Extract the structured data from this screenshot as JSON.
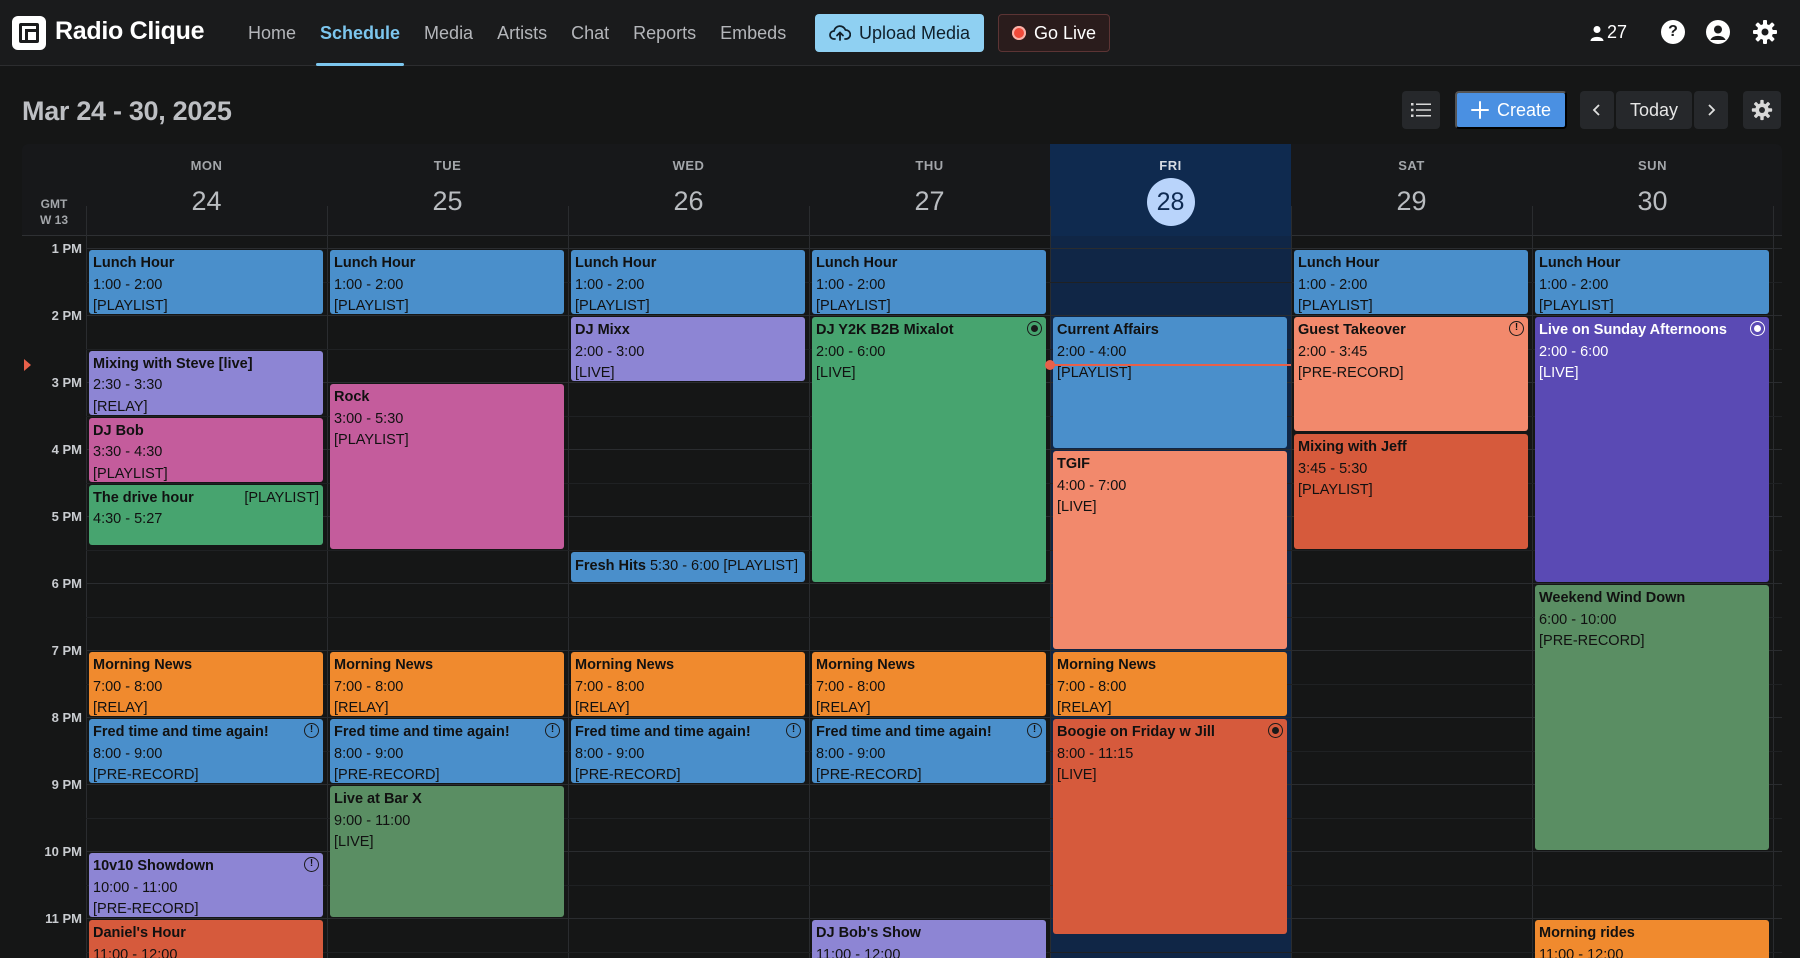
{
  "app": {
    "brand": "Radio Clique",
    "nav": [
      {
        "label": "Home",
        "active": false
      },
      {
        "label": "Schedule",
        "active": true
      },
      {
        "label": "Media",
        "active": false
      },
      {
        "label": "Artists",
        "active": false
      },
      {
        "label": "Chat",
        "active": false
      },
      {
        "label": "Reports",
        "active": false
      },
      {
        "label": "Embeds",
        "active": false
      }
    ],
    "upload_label": "Upload Media",
    "go_live_label": "Go Live",
    "listener_count": "27"
  },
  "toolbar": {
    "date_range": "Mar 24 - 30, 2025",
    "create_label": "Create",
    "today_label": "Today"
  },
  "calendar": {
    "timezone": "GMT",
    "week": "W 13",
    "days": [
      {
        "name": "MON",
        "date": "24",
        "today": false
      },
      {
        "name": "TUE",
        "date": "25",
        "today": false
      },
      {
        "name": "WED",
        "date": "26",
        "today": false
      },
      {
        "name": "THU",
        "date": "27",
        "today": false
      },
      {
        "name": "FRI",
        "date": "28",
        "today": true
      },
      {
        "name": "SAT",
        "date": "29",
        "today": false
      },
      {
        "name": "SUN",
        "date": "30",
        "today": false
      }
    ],
    "hours": [
      "1 PM",
      "2 PM",
      "3 PM",
      "4 PM",
      "5 PM",
      "6 PM",
      "7 PM",
      "8 PM",
      "9 PM",
      "10 PM",
      "11 PM"
    ],
    "now_hour": 14.75,
    "events": [
      {
        "day": 0,
        "start": 13,
        "end": 14,
        "title": "Lunch Hour",
        "time": "1:00 - 2:00",
        "kind": "[PLAYLIST]",
        "color": "#4a8fcb"
      },
      {
        "day": 0,
        "start": 14.5,
        "end": 15.5,
        "title": "Mixing with Steve [live]",
        "time": "2:30 - 3:30",
        "kind": "[RELAY]",
        "color": "#8d85d4"
      },
      {
        "day": 0,
        "start": 15.5,
        "end": 16.5,
        "title": "DJ Bob",
        "time": "3:30 - 4:30",
        "kind": "[PLAYLIST]",
        "color": "#c45c9c"
      },
      {
        "day": 0,
        "start": 16.5,
        "end": 17.45,
        "title": "The drive hour",
        "time": "4:30 - 5:27",
        "kind": "[PLAYLIST]",
        "color": "#47a46f",
        "kind_right": true
      },
      {
        "day": 0,
        "start": 19,
        "end": 20,
        "title": "Morning News",
        "time": "7:00 - 8:00",
        "kind": "[RELAY]",
        "color": "#f08a2e"
      },
      {
        "day": 0,
        "start": 20,
        "end": 21,
        "title": "Fred time and time again!",
        "time": "8:00 - 9:00",
        "kind": "[PRE-RECORD]",
        "color": "#4a8fcb",
        "badge": "!"
      },
      {
        "day": 0,
        "start": 22,
        "end": 23,
        "title": "10v10 Showdown",
        "time": "10:00 - 11:00",
        "kind": "[PRE-RECORD]",
        "color": "#8d85d4",
        "badge": "!"
      },
      {
        "day": 0,
        "start": 23,
        "end": 24,
        "title": "Daniel's Hour",
        "time": "11:00 - 12:00",
        "kind": "",
        "color": "#d65a3c"
      },
      {
        "day": 1,
        "start": 13,
        "end": 14,
        "title": "Lunch Hour",
        "time": "1:00 - 2:00",
        "kind": "[PLAYLIST]",
        "color": "#4a8fcb"
      },
      {
        "day": 1,
        "start": 15,
        "end": 17.5,
        "title": "Rock",
        "time": "3:00 - 5:30",
        "kind": "[PLAYLIST]",
        "color": "#c45c9c"
      },
      {
        "day": 1,
        "start": 19,
        "end": 20,
        "title": "Morning News",
        "time": "7:00 - 8:00",
        "kind": "[RELAY]",
        "color": "#f08a2e"
      },
      {
        "day": 1,
        "start": 20,
        "end": 21,
        "title": "Fred time and time again!",
        "time": "8:00 - 9:00",
        "kind": "[PRE-RECORD]",
        "color": "#4a8fcb",
        "badge": "!"
      },
      {
        "day": 1,
        "start": 21,
        "end": 23,
        "title": "Live at Bar X",
        "time": "9:00 - 11:00",
        "kind": "[LIVE]",
        "color": "#5a8e63"
      },
      {
        "day": 2,
        "start": 13,
        "end": 14,
        "title": "Lunch Hour",
        "time": "1:00 - 2:00",
        "kind": "[PLAYLIST]",
        "color": "#4a8fcb"
      },
      {
        "day": 2,
        "start": 14,
        "end": 15,
        "title": "DJ Mixx",
        "time": "2:00 - 3:00",
        "kind": "[LIVE]",
        "color": "#8d85d4"
      },
      {
        "day": 2,
        "start": 17.5,
        "end": 18,
        "title": "Fresh Hits",
        "time": "5:30 - 6:00",
        "kind": "[PLAYLIST]",
        "color": "#4a8fcb",
        "inline": true
      },
      {
        "day": 2,
        "start": 19,
        "end": 20,
        "title": "Morning News",
        "time": "7:00 - 8:00",
        "kind": "[RELAY]",
        "color": "#f08a2e"
      },
      {
        "day": 2,
        "start": 20,
        "end": 21,
        "title": "Fred time and time again!",
        "time": "8:00 - 9:00",
        "kind": "[PRE-RECORD]",
        "color": "#4a8fcb",
        "badge": "!"
      },
      {
        "day": 3,
        "start": 13,
        "end": 14,
        "title": "Lunch Hour",
        "time": "1:00 - 2:00",
        "kind": "[PLAYLIST]",
        "color": "#4a8fcb"
      },
      {
        "day": 3,
        "start": 14,
        "end": 18,
        "title": "DJ Y2K B2B Mixalot",
        "time": "2:00 - 6:00",
        "kind": "[LIVE]",
        "color": "#47a46f",
        "badge": "live"
      },
      {
        "day": 3,
        "start": 19,
        "end": 20,
        "title": "Morning News",
        "time": "7:00 - 8:00",
        "kind": "[RELAY]",
        "color": "#f08a2e"
      },
      {
        "day": 3,
        "start": 20,
        "end": 21,
        "title": "Fred time and time again!",
        "time": "8:00 - 9:00",
        "kind": "[PRE-RECORD]",
        "color": "#4a8fcb",
        "badge": "!"
      },
      {
        "day": 3,
        "start": 23,
        "end": 24,
        "title": "DJ Bob's Show",
        "time": "11:00 - 12:00",
        "kind": "",
        "color": "#8d85d4"
      },
      {
        "day": 4,
        "start": 14,
        "end": 16,
        "title": "Current Affairs",
        "time": "2:00 - 4:00",
        "kind": "[PLAYLIST]",
        "color": "#4a8fcb"
      },
      {
        "day": 4,
        "start": 16,
        "end": 19,
        "title": "TGIF",
        "time": "4:00 - 7:00",
        "kind": "[LIVE]",
        "color": "#f2896c"
      },
      {
        "day": 4,
        "start": 19,
        "end": 20,
        "title": "Morning News",
        "time": "7:00 - 8:00",
        "kind": "[RELAY]",
        "color": "#f08a2e"
      },
      {
        "day": 4,
        "start": 20,
        "end": 23.25,
        "title": "Boogie on Friday w Jill",
        "time": "8:00 - 11:15",
        "kind": "[LIVE]",
        "color": "#d65a3c",
        "badge": "live"
      },
      {
        "day": 5,
        "start": 13,
        "end": 14,
        "title": "Lunch Hour",
        "time": "1:00 - 2:00",
        "kind": "[PLAYLIST]",
        "color": "#4a8fcb"
      },
      {
        "day": 5,
        "start": 14,
        "end": 15.75,
        "title": "Guest Takeover",
        "time": "2:00 - 3:45",
        "kind": "[PRE-RECORD]",
        "color": "#f2896c",
        "badge": "!"
      },
      {
        "day": 5,
        "start": 15.75,
        "end": 17.5,
        "title": "Mixing with Jeff",
        "time": "3:45 - 5:30",
        "kind": "[PLAYLIST]",
        "color": "#d65a3c"
      },
      {
        "day": 6,
        "start": 13,
        "end": 14,
        "title": "Lunch Hour",
        "time": "1:00 - 2:00",
        "kind": "[PLAYLIST]",
        "color": "#4a8fcb"
      },
      {
        "day": 6,
        "start": 14,
        "end": 18,
        "title": "Live on Sunday Afternoons",
        "time": "2:00 - 6:00",
        "kind": "[LIVE]",
        "color": "#5a4ab4",
        "badge": "live-light",
        "light": true
      },
      {
        "day": 6,
        "start": 18,
        "end": 22,
        "title": "Weekend Wind Down",
        "time": "6:00 - 10:00",
        "kind": "[PRE-RECORD]",
        "color": "#5a8e63"
      },
      {
        "day": 6,
        "start": 23,
        "end": 24,
        "title": "Morning rides",
        "time": "11:00 - 12:00",
        "kind": "",
        "color": "#f08a2e"
      }
    ]
  }
}
